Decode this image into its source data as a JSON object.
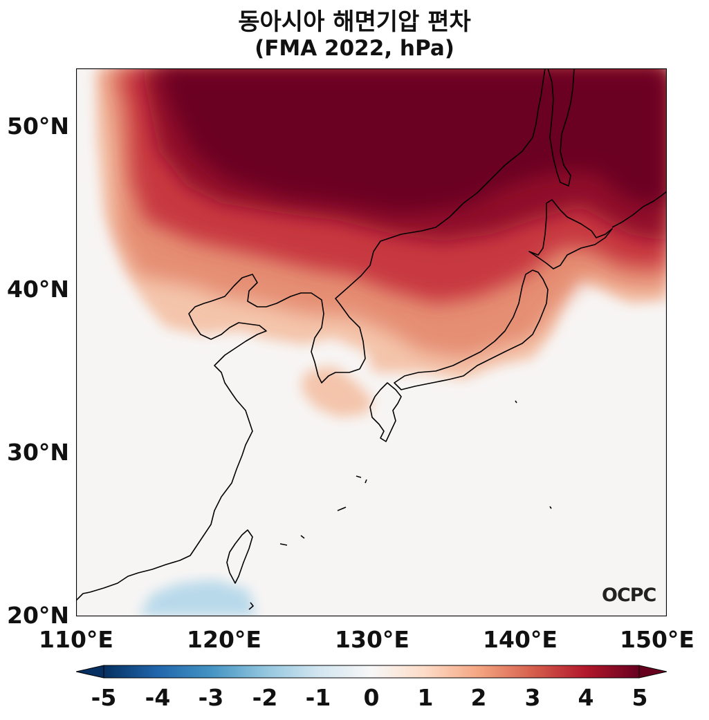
{
  "title": "동아시아 해면기압 편차",
  "subtitle": "(FMA 2022, hPa)",
  "map": {
    "region": "East Asia",
    "lon_range": [
      110,
      150
    ],
    "lat_range": [
      20,
      53.5
    ],
    "lat_ticks": [
      "50°N",
      "40°N",
      "30°N",
      "20°N"
    ],
    "lon_ticks": [
      "110°E",
      "120°E",
      "130°E",
      "140°E",
      "150°E"
    ],
    "anomaly_summary": {
      "max_positive_region": "Mongolia / Northeast China / Russian Far East",
      "max_value": 5,
      "neutral_region": "South China, East China Sea, Pacific south of Japan",
      "weak_negative_region": "South China coast near 20°N"
    }
  },
  "logo": "OCPC",
  "colorbar": {
    "labels": [
      "-5",
      "-4",
      "-3",
      "-2",
      "-1",
      "0",
      "1",
      "2",
      "3",
      "4",
      "5"
    ],
    "min": -5,
    "max": 5,
    "colormap": "RdBu_r",
    "negative_color": "#053061",
    "neutral_color": "#f7f7f7",
    "positive_color": "#67001f"
  }
}
